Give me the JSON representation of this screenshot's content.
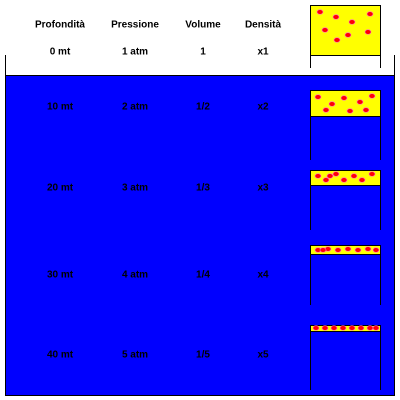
{
  "header": {
    "columns": [
      "Profondità",
      "Pressione",
      "Volume",
      "Densità"
    ]
  },
  "rows": [
    [
      "0 mt",
      "1 atm",
      "1",
      "x1"
    ],
    [
      "10 mt",
      "2 atm",
      "1/2",
      "x2"
    ],
    [
      "20 mt",
      "3 atm",
      "1/3",
      "x3"
    ],
    [
      "30 mt",
      "4 atm",
      "1/4",
      "x4"
    ],
    [
      "40 mt",
      "5 atm",
      "1/5",
      "x5"
    ]
  ]
}
